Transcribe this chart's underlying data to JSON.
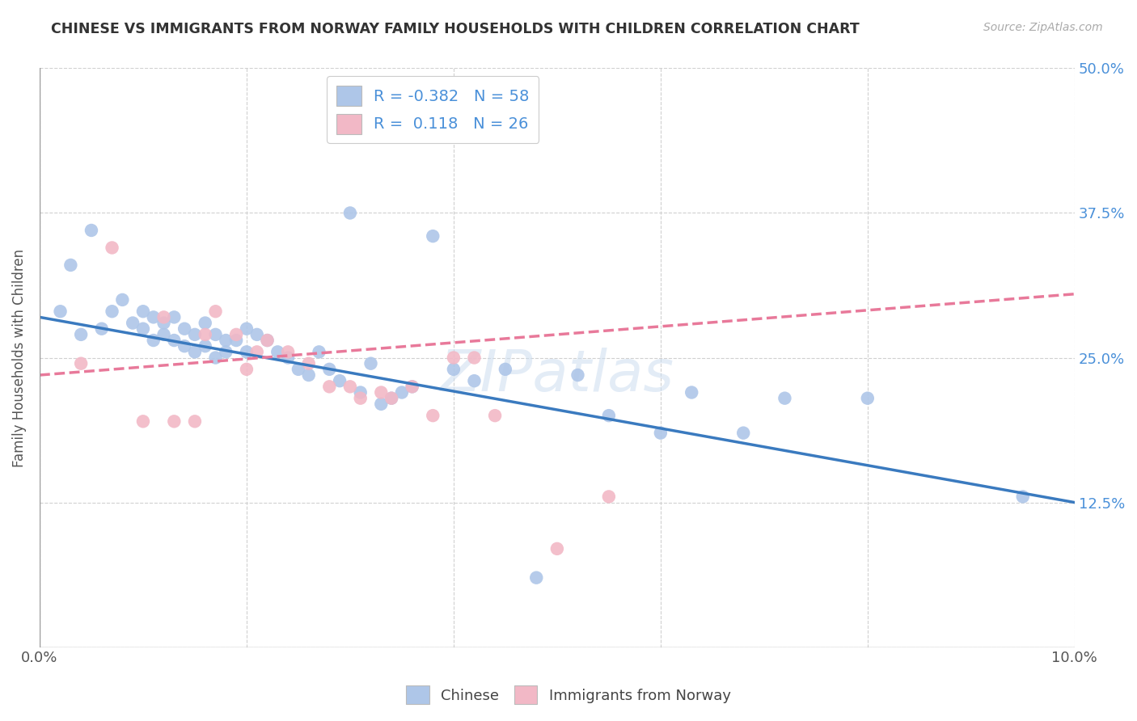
{
  "title": "CHINESE VS IMMIGRANTS FROM NORWAY FAMILY HOUSEHOLDS WITH CHILDREN CORRELATION CHART",
  "source": "Source: ZipAtlas.com",
  "ylabel": "Family Households with Children",
  "legend_label1": "Chinese",
  "legend_label2": "Immigrants from Norway",
  "r1": -0.382,
  "n1": 58,
  "r2": 0.118,
  "n2": 26,
  "color1": "#aec6e8",
  "color2": "#f2b8c6",
  "trendline1_color": "#3a7abf",
  "trendline2_color": "#e8799a",
  "xlim": [
    0.0,
    0.1
  ],
  "ylim": [
    0.0,
    0.5
  ],
  "xticks": [
    0.0,
    0.02,
    0.04,
    0.06,
    0.08,
    0.1
  ],
  "yticks": [
    0.0,
    0.125,
    0.25,
    0.375,
    0.5
  ],
  "ytick_labels_right": [
    "",
    "12.5%",
    "25.0%",
    "37.5%",
    "50.0%"
  ],
  "chinese_x": [
    0.002,
    0.003,
    0.004,
    0.005,
    0.006,
    0.007,
    0.008,
    0.009,
    0.01,
    0.01,
    0.011,
    0.011,
    0.012,
    0.012,
    0.013,
    0.013,
    0.014,
    0.014,
    0.015,
    0.015,
    0.016,
    0.016,
    0.017,
    0.017,
    0.018,
    0.018,
    0.019,
    0.02,
    0.02,
    0.021,
    0.022,
    0.023,
    0.024,
    0.025,
    0.026,
    0.027,
    0.028,
    0.029,
    0.03,
    0.031,
    0.032,
    0.033,
    0.034,
    0.035,
    0.036,
    0.038,
    0.04,
    0.042,
    0.045,
    0.048,
    0.052,
    0.055,
    0.06,
    0.063,
    0.068,
    0.072,
    0.08,
    0.095
  ],
  "chinese_y": [
    0.29,
    0.33,
    0.27,
    0.36,
    0.275,
    0.29,
    0.3,
    0.28,
    0.29,
    0.275,
    0.285,
    0.265,
    0.28,
    0.27,
    0.285,
    0.265,
    0.275,
    0.26,
    0.27,
    0.255,
    0.28,
    0.26,
    0.27,
    0.25,
    0.265,
    0.255,
    0.265,
    0.275,
    0.255,
    0.27,
    0.265,
    0.255,
    0.25,
    0.24,
    0.235,
    0.255,
    0.24,
    0.23,
    0.375,
    0.22,
    0.245,
    0.21,
    0.215,
    0.22,
    0.225,
    0.355,
    0.24,
    0.23,
    0.24,
    0.06,
    0.235,
    0.2,
    0.185,
    0.22,
    0.185,
    0.215,
    0.215,
    0.13
  ],
  "norway_x": [
    0.004,
    0.007,
    0.01,
    0.012,
    0.013,
    0.015,
    0.016,
    0.017,
    0.019,
    0.02,
    0.021,
    0.022,
    0.024,
    0.026,
    0.028,
    0.03,
    0.031,
    0.033,
    0.034,
    0.036,
    0.038,
    0.04,
    0.042,
    0.044,
    0.05,
    0.055
  ],
  "norway_y": [
    0.245,
    0.345,
    0.195,
    0.285,
    0.195,
    0.195,
    0.27,
    0.29,
    0.27,
    0.24,
    0.255,
    0.265,
    0.255,
    0.245,
    0.225,
    0.225,
    0.215,
    0.22,
    0.215,
    0.225,
    0.2,
    0.25,
    0.25,
    0.2,
    0.085,
    0.13
  ],
  "trendline1_x0": 0.0,
  "trendline1_y0": 0.285,
  "trendline1_x1": 0.1,
  "trendline1_y1": 0.125,
  "trendline2_x0": 0.0,
  "trendline2_y0": 0.235,
  "trendline2_x1": 0.1,
  "trendline2_y1": 0.305
}
